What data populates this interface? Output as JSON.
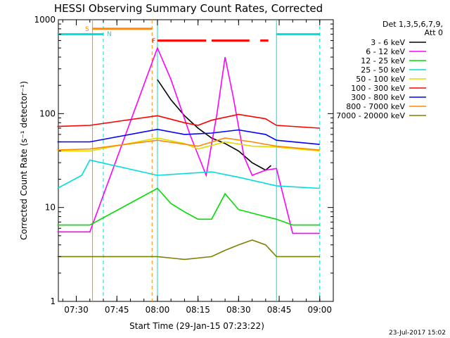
{
  "chart_data": {
    "type": "line",
    "title": "HESSI Observing Summary Count Rates, Corrected",
    "xlabel": "Start Time (29-Jan-15 07:23:22)",
    "ylabel": "Corrected Count Rate (s⁻¹ detector⁻¹)",
    "yscale": "log",
    "ylim": [
      1,
      1000
    ],
    "xlim": [
      "07:23:22",
      "09:05:00"
    ],
    "x_ticks": [
      "07:30",
      "07:45",
      "08:00",
      "08:15",
      "08:30",
      "08:45",
      "09:00"
    ],
    "y_ticks": [
      "1",
      "10",
      "100",
      "1000"
    ],
    "date_stamp": "23-Jul-2017 15:02",
    "legend_header": [
      "Det 1,3,5,6,7,9,",
      "Att 0"
    ],
    "flags": {
      "S": "S",
      "N": "N",
      "F": "F"
    },
    "series": [
      {
        "name": "3 - 6 keV",
        "color": "#000000",
        "x": [
          "08:00",
          "08:05",
          "08:10",
          "08:15",
          "08:20",
          "08:25",
          "08:30",
          "08:35",
          "08:40",
          "08:42"
        ],
        "y": [
          230,
          140,
          95,
          70,
          55,
          48,
          40,
          30,
          25,
          28
        ]
      },
      {
        "name": "6 - 12 keV",
        "color": "#ff00ff",
        "x": [
          "07:23",
          "07:35",
          "08:00",
          "08:05",
          "08:12",
          "08:18",
          "08:22",
          "08:25",
          "08:28",
          "08:32",
          "08:35",
          "08:40",
          "08:44",
          "08:50",
          "09:00"
        ],
        "y": [
          5.5,
          5.5,
          500,
          230,
          60,
          22,
          100,
          400,
          150,
          35,
          22,
          25,
          26,
          5.3,
          5.3
        ]
      },
      {
        "name": "12 - 25 keV",
        "color": "#00dd00",
        "x": [
          "07:23",
          "07:35",
          "08:00",
          "08:05",
          "08:10",
          "08:15",
          "08:20",
          "08:25",
          "08:30",
          "08:40",
          "08:44",
          "08:50",
          "09:00"
        ],
        "y": [
          6.5,
          6.5,
          16,
          11,
          9,
          7.5,
          7.5,
          14,
          9.5,
          8,
          7.5,
          6.5,
          6.5
        ]
      },
      {
        "name": "25 - 50 keV",
        "color": "#00dddd",
        "x": [
          "07:23",
          "07:32",
          "07:35",
          "08:00",
          "08:20",
          "08:30",
          "08:44",
          "09:00"
        ],
        "y": [
          16,
          22,
          32,
          22,
          24,
          21,
          17,
          16
        ]
      },
      {
        "name": "50 - 100 keV",
        "color": "#dddd00",
        "x": [
          "07:23",
          "07:35",
          "08:00",
          "08:10",
          "08:15",
          "08:25",
          "08:35",
          "08:44",
          "09:00"
        ],
        "y": [
          40,
          40,
          55,
          48,
          42,
          50,
          45,
          44,
          40
        ]
      },
      {
        "name": "100 - 300 keV",
        "color": "#ff0000",
        "x": [
          "07:23",
          "07:35",
          "08:00",
          "08:10",
          "08:15",
          "08:20",
          "08:30",
          "08:40",
          "08:44",
          "09:00"
        ],
        "y": [
          73,
          75,
          95,
          80,
          75,
          85,
          98,
          88,
          75,
          70
        ]
      },
      {
        "name": "300 - 800 keV",
        "color": "#0000ff",
        "x": [
          "07:23",
          "07:35",
          "08:00",
          "08:10",
          "08:20",
          "08:30",
          "08:40",
          "08:44",
          "09:00"
        ],
        "y": [
          50,
          50,
          68,
          60,
          62,
          67,
          60,
          52,
          47
        ]
      },
      {
        "name": "800 - 7000 keV",
        "color": "#ff8800",
        "x": [
          "07:23",
          "07:35",
          "08:00",
          "08:15",
          "08:25",
          "08:35",
          "08:44",
          "09:00"
        ],
        "y": [
          41,
          42,
          52,
          45,
          55,
          50,
          45,
          41
        ]
      },
      {
        "name": "7000 - 20000 keV",
        "color": "#808000",
        "x": [
          "07:23",
          "07:35",
          "08:00",
          "08:10",
          "08:20",
          "08:25",
          "08:30",
          "08:35",
          "08:40",
          "08:44",
          "09:00"
        ],
        "y": [
          3,
          3,
          3,
          2.8,
          3,
          3.5,
          4,
          4.5,
          4,
          3,
          3
        ]
      }
    ],
    "bars": [
      {
        "color": "#00dddd",
        "y": 700,
        "segments": [
          [
            "07:23",
            "07:40"
          ],
          [
            "08:44",
            "09:00"
          ]
        ]
      },
      {
        "color": "#ff8800",
        "y": 800,
        "segments": [
          [
            "07:36",
            "07:58"
          ]
        ]
      },
      {
        "color": "#ff0000",
        "y": 600,
        "segments": [
          [
            "08:00",
            "08:18"
          ],
          [
            "08:20",
            "08:34"
          ],
          [
            "08:38",
            "08:41"
          ]
        ]
      }
    ],
    "vlines": [
      {
        "x": "07:36",
        "color": "#ff8800",
        "style": "solid"
      },
      {
        "x": "07:40",
        "color": "#00dddd",
        "style": "dashed"
      },
      {
        "x": "07:58",
        "color": "#ff8800",
        "style": "dashed"
      },
      {
        "x": "08:00",
        "color": "#00dddd",
        "style": "solid"
      },
      {
        "x": "08:44",
        "color": "#00dddd",
        "style": "solid"
      },
      {
        "x": "09:00",
        "color": "#00dddd",
        "style": "dashed"
      }
    ]
  }
}
